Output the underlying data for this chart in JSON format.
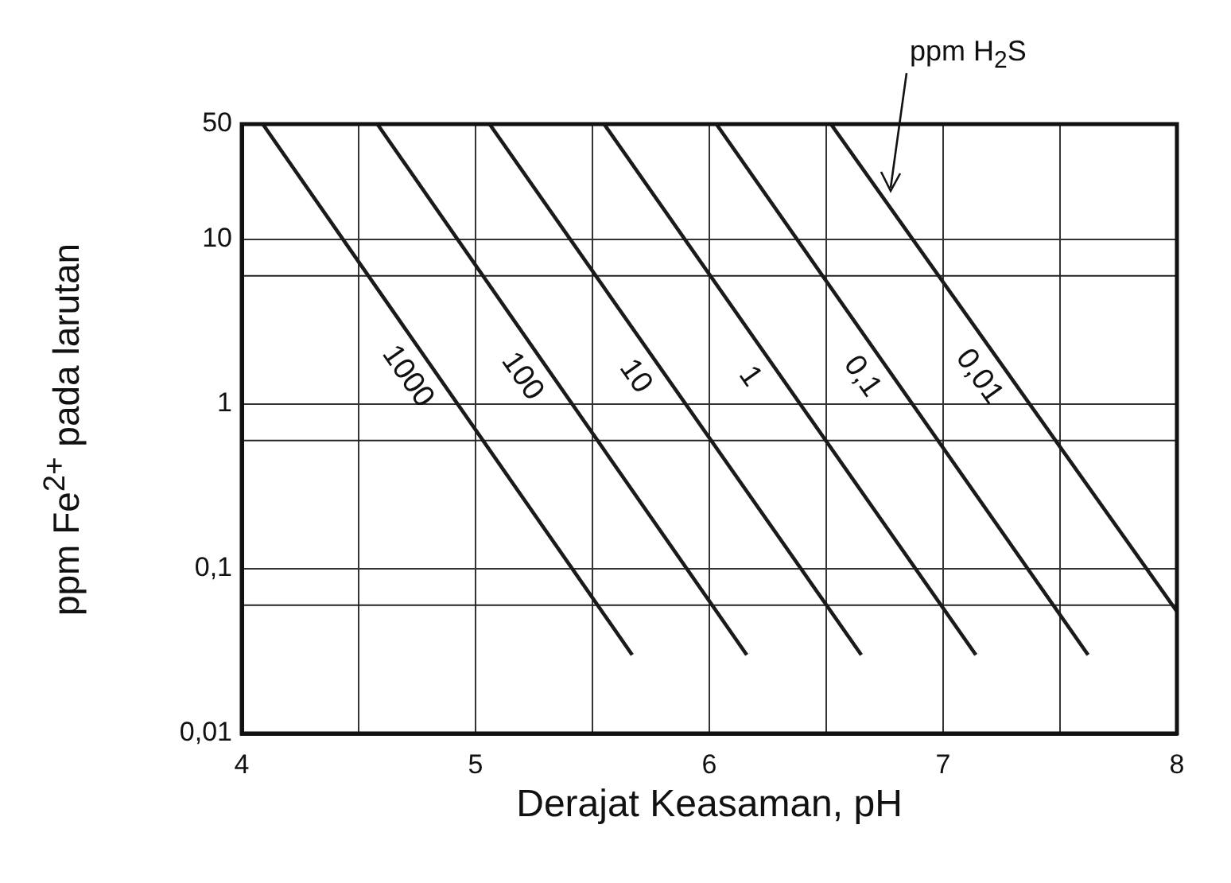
{
  "chart_data": {
    "type": "line",
    "xlabel": "Derajat Keasaman, pH",
    "ylabel": "ppm Fe$^{2+}$ pada larutan",
    "log": "y",
    "grid": true,
    "legend": false,
    "marker": "none",
    "line_style": "solid",
    "xlim": [
      4,
      8
    ],
    "xticks": [
      4,
      {
        "value": 4.5,
        "label": null
      },
      5,
      {
        "value": 5.5,
        "label": null
      },
      6,
      {
        "value": 6.5,
        "label": null
      },
      7,
      {
        "value": 7.5,
        "label": null
      },
      8
    ],
    "ylim": [
      0.01,
      50
    ],
    "yticks": [
      {
        "value": 0.01,
        "label": "0,01"
      },
      {
        "value": 0.1,
        "label": "0,1"
      },
      1,
      10,
      50
    ],
    "series": [
      {
        "name": "1000",
        "color": "#1a1a1a",
        "x": [
          4.09,
          5.67
        ],
        "values": [
          50,
          0.03
        ]
      },
      {
        "name": "100",
        "color": "#1a1a1a",
        "x": [
          4.58,
          6.16
        ],
        "values": [
          50,
          0.03
        ]
      },
      {
        "name": "10",
        "color": "#1a1a1a",
        "x": [
          5.06,
          6.65
        ],
        "values": [
          50,
          0.03
        ]
      },
      {
        "name": "1",
        "color": "#1a1a1a",
        "x": [
          5.55,
          7.14
        ],
        "values": [
          50,
          0.03
        ]
      },
      {
        "name": "0,1",
        "color": "#1a1a1a",
        "x": [
          6.03,
          7.62
        ],
        "values": [
          50,
          0.03
        ]
      },
      {
        "name": "0,01",
        "color": "#1a1a1a",
        "x": [
          6.52,
          8
        ],
        "values": [
          50,
          0.055
        ]
      }
    ],
    "ref_lines": [
      {
        "axis": "y",
        "value": 6
      },
      {
        "axis": "y",
        "value": 0.6
      },
      {
        "axis": "y",
        "value": 0.06
      }
    ],
    "annotations": [
      "ppm H$_{2}$S"
    ]
  }
}
